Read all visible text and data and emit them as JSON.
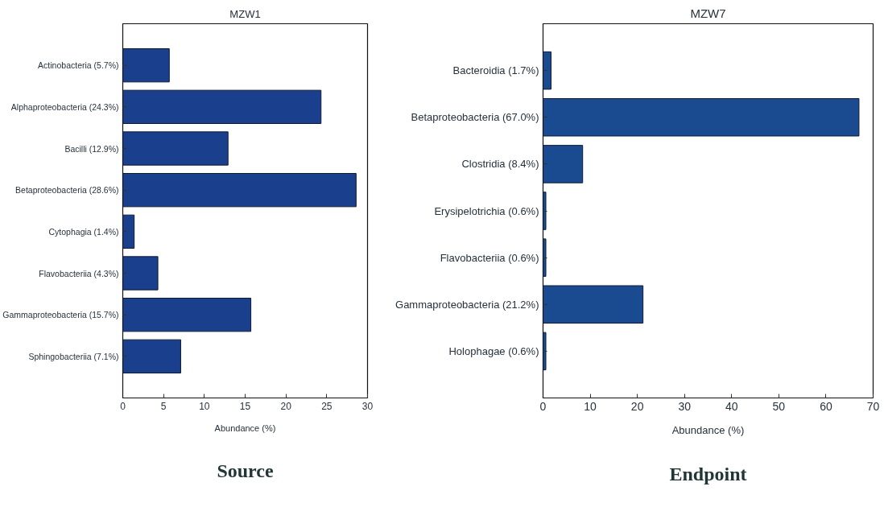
{
  "chart_data": [
    {
      "type": "bar",
      "orientation": "horizontal",
      "title": "MZW1",
      "xlabel": "Abundance (%)",
      "categories": [
        "Actinobacteria (5.7%)",
        "Alphaproteobacteria (24.3%)",
        "Bacilli (12.9%)",
        "Betaproteobacteria (28.6%)",
        "Cytophagia (1.4%)",
        "Flavobacteriia (4.3%)",
        "Gammaproteobacteria (15.7%)",
        "Sphingobacteriia (7.1%)"
      ],
      "values": [
        5.7,
        24.3,
        12.9,
        28.6,
        1.4,
        4.3,
        15.7,
        7.1
      ],
      "color": "#1a3f8c",
      "xlim": [
        0,
        30
      ],
      "xticks": [
        0,
        5,
        10,
        15,
        20,
        25,
        30
      ],
      "annotations": [
        "Source"
      ]
    },
    {
      "type": "bar",
      "orientation": "horizontal",
      "title": "MZW7",
      "xlabel": "Abundance (%)",
      "categories": [
        "Bacteroidia (1.7%)",
        "Betaproteobacteria (67.0%)",
        "Clostridia (8.4%)",
        "Erysipelotrichia (0.6%)",
        "Flavobacteriia (0.6%)",
        "Gammaproteobacteria (21.2%)",
        "Holophagae (0.6%)"
      ],
      "values": [
        1.7,
        67.0,
        8.4,
        0.6,
        0.6,
        21.2,
        0.6
      ],
      "color": "#1a4a8f",
      "xlim": [
        0,
        70
      ],
      "xticks": [
        0,
        10,
        20,
        30,
        40,
        50,
        60,
        70
      ],
      "annotations": [
        "Endpoint"
      ]
    }
  ]
}
